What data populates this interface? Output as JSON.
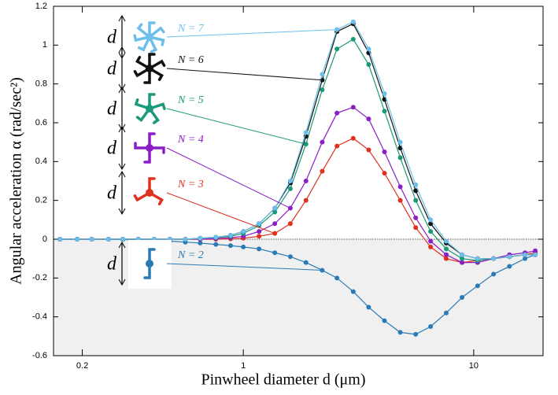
{
  "chart_data": {
    "type": "line",
    "xlabel": "Pinwheel diameter d (μm)",
    "ylabel": "Angular acceleration α (rad/sec²)",
    "annotation": "d",
    "log_x": true,
    "x": [
      0.16,
      0.19,
      0.22,
      0.26,
      0.3,
      0.35,
      0.41,
      0.48,
      0.56,
      0.65,
      0.76,
      0.88,
      1.0,
      1.17,
      1.37,
      1.6,
      1.87,
      2.2,
      2.55,
      3.0,
      3.5,
      4.1,
      4.8,
      5.6,
      6.5,
      7.6,
      8.9,
      10.4,
      12.2,
      14.3,
      16.7,
      18.5
    ],
    "series": [
      {
        "name": "N = 7",
        "color": "#6bbfea",
        "values": [
          0,
          0,
          0,
          0,
          0,
          0,
          0,
          0,
          0,
          0.005,
          0.01,
          0.02,
          0.04,
          0.08,
          0.16,
          0.3,
          0.55,
          0.85,
          1.08,
          1.12,
          0.98,
          0.75,
          0.5,
          0.28,
          0.1,
          -0.01,
          -0.08,
          -0.1,
          -0.1,
          -0.09,
          -0.08,
          -0.08
        ]
      },
      {
        "name": "N = 6",
        "color": "#111111",
        "values": [
          0,
          0,
          0,
          0,
          0,
          0,
          0,
          0,
          0,
          0.005,
          0.01,
          0.02,
          0.04,
          0.08,
          0.16,
          0.29,
          0.53,
          0.82,
          1.07,
          1.11,
          0.96,
          0.72,
          0.47,
          0.25,
          0.08,
          -0.02,
          -0.08,
          -0.1,
          -0.1,
          -0.09,
          -0.08,
          -0.08
        ]
      },
      {
        "name": "N = 5",
        "color": "#1a9a78",
        "values": [
          0,
          0,
          0,
          0,
          0,
          0,
          0,
          0,
          0,
          0.004,
          0.008,
          0.015,
          0.03,
          0.07,
          0.14,
          0.26,
          0.49,
          0.77,
          0.98,
          1.03,
          0.9,
          0.66,
          0.42,
          0.2,
          0.04,
          -0.05,
          -0.1,
          -0.11,
          -0.1,
          -0.09,
          -0.08,
          -0.08
        ]
      },
      {
        "name": "N = 4",
        "color": "#8a1fc8",
        "values": [
          0,
          0,
          0,
          0,
          0,
          0,
          0,
          0,
          0,
          0,
          0.003,
          0.008,
          0.015,
          0.04,
          0.08,
          0.16,
          0.3,
          0.5,
          0.65,
          0.68,
          0.62,
          0.45,
          0.27,
          0.11,
          -0.01,
          -0.08,
          -0.12,
          -0.12,
          -0.1,
          -0.08,
          -0.07,
          -0.06
        ]
      },
      {
        "name": "N = 3",
        "color": "#e0301e",
        "values": [
          0,
          0,
          0,
          0,
          0,
          0,
          0,
          0,
          0,
          0,
          0,
          0.002,
          0.005,
          0.015,
          0.03,
          0.08,
          0.2,
          0.35,
          0.48,
          0.52,
          0.46,
          0.34,
          0.2,
          0.06,
          -0.04,
          -0.1,
          -0.12,
          -0.11,
          -0.1,
          -0.09,
          -0.08,
          -0.07
        ]
      },
      {
        "name": "N = 2",
        "color": "#2a7bb5",
        "values": [
          0,
          0,
          0,
          0,
          -0.002,
          -0.004,
          -0.007,
          -0.01,
          -0.015,
          -0.02,
          -0.027,
          -0.033,
          -0.04,
          -0.05,
          -0.07,
          -0.09,
          -0.12,
          -0.16,
          -0.2,
          -0.27,
          -0.35,
          -0.42,
          -0.48,
          -0.49,
          -0.45,
          -0.38,
          -0.3,
          -0.24,
          -0.18,
          -0.14,
          -0.1,
          -0.08
        ]
      }
    ],
    "xlim": [
      0.15,
      20
    ],
    "xticks": [
      0.2,
      1,
      10
    ],
    "ylim": [
      -0.6,
      1.2
    ],
    "yticks": [
      -0.6,
      -0.4,
      -0.2,
      0,
      0.2,
      0.4,
      0.6,
      0.8,
      1,
      1.2
    ],
    "negative_shade": true
  }
}
